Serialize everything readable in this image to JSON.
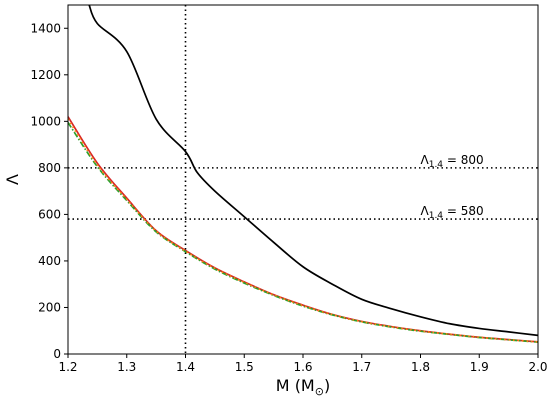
{
  "chart_data": {
    "type": "line",
    "title": "",
    "xlabel": {
      "base": "M (M",
      "sub": "⊙",
      "end": ")"
    },
    "ylabel": "Λ",
    "xlim": [
      1.2,
      2.0
    ],
    "ylim": [
      0,
      1500
    ],
    "xticks": [
      1.2,
      1.3,
      1.4,
      1.5,
      1.6,
      1.7,
      1.8,
      1.9,
      2.0
    ],
    "xtick_labels": [
      "1.2",
      "1.3",
      "1.4",
      "1.5",
      "1.6",
      "1.7",
      "1.8",
      "1.9",
      "2.0"
    ],
    "yticks": [
      0,
      200,
      400,
      600,
      800,
      1000,
      1200,
      1400
    ],
    "ytick_labels": [
      "0",
      "200",
      "400",
      "600",
      "800",
      "1000",
      "1200",
      "1400"
    ],
    "grid": false,
    "legend": "none",
    "series": [
      {
        "color": "#000000",
        "style": "solid",
        "x": [
          1.236,
          1.25,
          1.3,
          1.35,
          1.4,
          1.42,
          1.45,
          1.5,
          1.55,
          1.6,
          1.65,
          1.7,
          1.75,
          1.8,
          1.85,
          1.9,
          1.95,
          2.0
        ],
        "y": [
          1500,
          1420,
          1300,
          1010,
          870,
          780,
          700,
          590,
          480,
          375,
          300,
          235,
          195,
          160,
          130,
          110,
          95,
          80
        ]
      },
      {
        "color": "#d62728",
        "style": "solid",
        "x": [
          1.2,
          1.25,
          1.3,
          1.35,
          1.4,
          1.45,
          1.5,
          1.55,
          1.6,
          1.65,
          1.7,
          1.75,
          1.8,
          1.85,
          1.9,
          1.95,
          2.0
        ],
        "y": [
          1020,
          820,
          670,
          530,
          445,
          370,
          310,
          255,
          210,
          170,
          140,
          118,
          100,
          85,
          72,
          62,
          52
        ]
      },
      {
        "color": "#2ca02c",
        "style": "dashdot",
        "x": [
          1.2,
          1.25,
          1.3,
          1.35,
          1.4,
          1.45,
          1.5,
          1.55,
          1.6,
          1.65,
          1.7,
          1.75,
          1.8,
          1.85,
          1.9,
          1.95,
          2.0
        ],
        "y": [
          995,
          805,
          660,
          525,
          440,
          365,
          305,
          252,
          206,
          168,
          138,
          116,
          98,
          84,
          71,
          61,
          51
        ]
      },
      {
        "color": "#ff7f0e",
        "style": "dotted",
        "x": [
          1.2,
          1.25,
          1.3,
          1.35,
          1.4,
          1.45,
          1.5,
          1.55,
          1.6,
          1.65,
          1.7,
          1.75,
          1.8,
          1.85,
          1.9,
          1.95,
          2.0
        ],
        "y": [
          1010,
          812,
          665,
          528,
          442,
          368,
          308,
          254,
          208,
          169,
          139,
          117,
          99,
          85,
          72,
          61,
          52
        ]
      }
    ],
    "reference_lines": [
      {
        "orientation": "horizontal",
        "value": 800,
        "style": "dotted",
        "color": "#000000"
      },
      {
        "orientation": "horizontal",
        "value": 580,
        "style": "dotted",
        "color": "#000000"
      },
      {
        "orientation": "vertical",
        "value": 1.4,
        "style": "dotted",
        "color": "#000000"
      }
    ],
    "annotations": [
      {
        "sym": "Λ",
        "sub": "1.4",
        "rest": " = 800",
        "x": 1.8,
        "y": 800
      },
      {
        "sym": "Λ",
        "sub": "1.4",
        "rest": " = 580",
        "x": 1.8,
        "y": 580
      }
    ]
  }
}
